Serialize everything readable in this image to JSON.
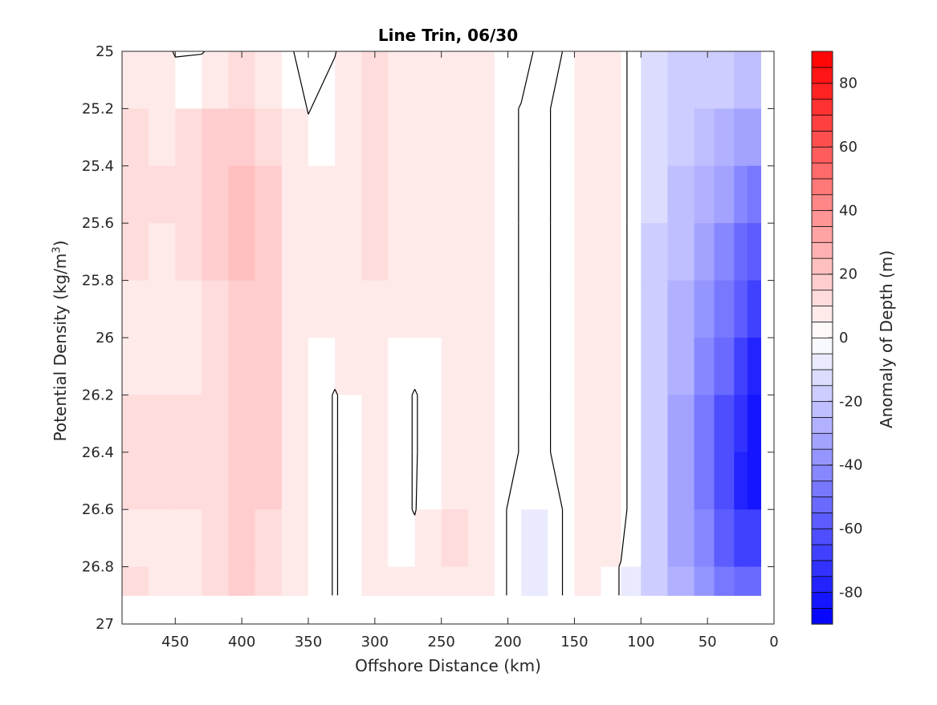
{
  "chart_data": {
    "type": "heatmap",
    "subtype": "filled-contour",
    "title": "Line Trin, 06/30",
    "xlabel": "Offshore Distance (km)",
    "ylabel_main": "Potential Density (kg/m",
    "ylabel_sup": "3",
    "ylabel_tail": ")",
    "colorbar_label": "Anomaly of Depth (m)",
    "xlim": [
      0,
      490
    ],
    "x_reversed": true,
    "ylim": [
      25,
      27
    ],
    "y_reversed": true,
    "xticks": [
      450,
      400,
      350,
      300,
      250,
      200,
      150,
      100,
      50,
      0
    ],
    "xtick_labels": [
      "450",
      "400",
      "350",
      "300",
      "250",
      "200",
      "150",
      "100",
      "50",
      "0"
    ],
    "yticks": [
      25,
      25.2,
      25.4,
      25.6,
      25.8,
      26,
      26.2,
      26.4,
      26.6,
      26.8,
      27
    ],
    "ytick_labels": [
      "25",
      "25.2",
      "25.4",
      "25.6",
      "25.8",
      "26",
      "26.2",
      "26.4",
      "26.6",
      "26.8",
      "27"
    ],
    "clim": [
      -90,
      90
    ],
    "contour_interval": 5,
    "cticks": [
      80,
      60,
      40,
      20,
      0,
      -20,
      -40,
      -60,
      -80
    ],
    "ctick_labels": [
      "80",
      "60",
      "40",
      "20",
      "0",
      "-20",
      "-40",
      "-60",
      "-80"
    ],
    "colormap": "blue-white-red",
    "colors": {
      "negative": "#0000ff",
      "zero": "#ffffff",
      "positive": "#ff0000"
    },
    "grid": false,
    "data_rows": [
      {
        "x": 490,
        "sigma": [
          10,
          10,
          10,
          10,
          10,
          5,
          10,
          10,
          10,
          10,
          15
        ]
      },
      {
        "x": 470,
        "sigma": [
          5,
          10,
          10,
          10,
          10,
          5,
          10,
          10,
          10,
          5,
          10
        ]
      },
      {
        "x": 450,
        "sigma": [
          0,
          5,
          10,
          10,
          5,
          5,
          10,
          10,
          10,
          5,
          10
        ]
      },
      {
        "x": 430,
        "sigma": [
          0,
          10,
          15,
          15,
          10,
          10,
          10,
          15,
          10,
          5,
          10
        ]
      },
      {
        "x": 410,
        "sigma": [
          5,
          15,
          20,
          20,
          20,
          15,
          15,
          15,
          15,
          15,
          15
        ]
      },
      {
        "x": 390,
        "sigma": [
          5,
          15,
          20,
          20,
          20,
          20,
          20,
          20,
          20,
          15,
          15
        ]
      },
      {
        "x": 370,
        "sigma": [
          5,
          10,
          10,
          10,
          10,
          10,
          10,
          10,
          10,
          10,
          10
        ]
      },
      {
        "x": 350,
        "sigma": [
          -5,
          0,
          5,
          5,
          5,
          5,
          5,
          5,
          5,
          5,
          5
        ]
      },
      {
        "x": 330,
        "sigma": [
          0,
          5,
          5,
          5,
          5,
          5,
          0,
          0,
          0,
          0,
          0
        ]
      },
      {
        "x": 310,
        "sigma": [
          10,
          10,
          10,
          10,
          10,
          10,
          5,
          5,
          5,
          5,
          5
        ]
      },
      {
        "x": 290,
        "sigma": [
          10,
          10,
          10,
          10,
          10,
          5,
          5,
          5,
          5,
          5,
          5
        ]
      },
      {
        "x": 270,
        "sigma": [
          5,
          5,
          5,
          5,
          5,
          5,
          0,
          0,
          0,
          5,
          5
        ]
      },
      {
        "x": 250,
        "sigma": [
          5,
          5,
          5,
          5,
          5,
          5,
          5,
          5,
          10,
          10,
          10
        ]
      },
      {
        "x": 230,
        "sigma": [
          5,
          5,
          5,
          5,
          5,
          5,
          5,
          10,
          10,
          10,
          5
        ]
      },
      {
        "x": 210,
        "sigma": [
          5,
          5,
          5,
          5,
          5,
          5,
          5,
          5,
          5,
          5,
          5
        ]
      },
      {
        "x": 190,
        "sigma": [
          5,
          0,
          0,
          0,
          0,
          0,
          0,
          0,
          -5,
          -5,
          -5
        ]
      },
      {
        "x": 170,
        "sigma": [
          -5,
          0,
          0,
          0,
          0,
          0,
          0,
          0,
          -5,
          -5,
          -5
        ]
      },
      {
        "x": 150,
        "sigma": [
          5,
          5,
          5,
          5,
          5,
          5,
          5,
          5,
          5,
          5,
          5
        ]
      },
      {
        "x": 130,
        "sigma": [
          10,
          10,
          5,
          10,
          15,
          10,
          10,
          10,
          10,
          5,
          5
        ]
      },
      {
        "x": 115,
        "sigma": [
          5,
          5,
          5,
          5,
          5,
          5,
          5,
          5,
          5,
          0,
          0
        ]
      },
      {
        "x": 100,
        "sigma": [
          -10,
          -10,
          -10,
          -10,
          -10,
          -10,
          -10,
          -10,
          -10,
          -10,
          -10
        ]
      },
      {
        "x": 80,
        "sigma": [
          -15,
          -15,
          -15,
          -20,
          -20,
          -25,
          -25,
          -25,
          -25,
          -25,
          -25
        ]
      },
      {
        "x": 60,
        "sigma": [
          -15,
          -20,
          -20,
          -25,
          -30,
          -30,
          -35,
          -40,
          -40,
          -35,
          -30
        ]
      },
      {
        "x": 45,
        "sigma": [
          -15,
          -20,
          -25,
          -30,
          -35,
          -45,
          -50,
          -55,
          -55,
          -45,
          -35
        ]
      },
      {
        "x": 30,
        "sigma": [
          -15,
          -25,
          -35,
          -45,
          -50,
          -55,
          -65,
          -70,
          -70,
          -60,
          -40
        ]
      },
      {
        "x": 20,
        "sigma": [
          -15,
          -25,
          -40,
          -50,
          -60,
          -65,
          -75,
          -85,
          -75,
          -60,
          -40
        ]
      },
      {
        "x": 10,
        "sigma": [
          -15,
          -25,
          -40,
          -55,
          -65,
          -75,
          -85,
          -85,
          -75,
          -60,
          -40
        ]
      }
    ],
    "sigma_levels": [
      25,
      25.2,
      25.4,
      25.6,
      25.8,
      26,
      26.2,
      26.4,
      26.6,
      26.8,
      26.9
    ]
  }
}
